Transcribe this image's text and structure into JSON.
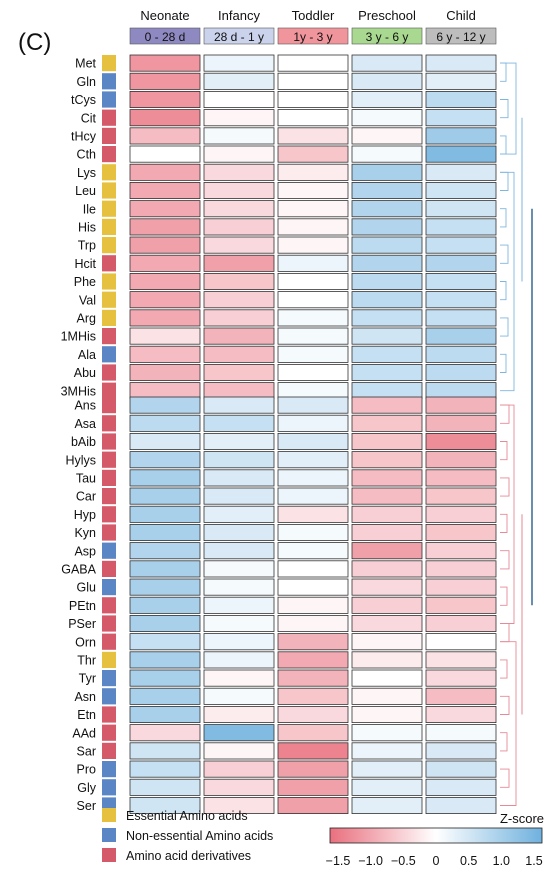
{
  "panel_label": "(C)",
  "colors": {
    "essential": "#e6c13f",
    "nonessential": "#5b86c5",
    "derivative": "#d45a6a",
    "low": "#e9707e",
    "mid": "#ffffff",
    "high": "#6fb1de"
  },
  "chart_data": {
    "type": "heatmap",
    "stage_names": [
      "Neonate",
      "Infancy",
      "Toddler",
      "Preschool",
      "Child"
    ],
    "stage_ranges": [
      "0 - 28 d",
      "28 d - 1 y",
      "1y - 3 y",
      "3 y - 6 y",
      "6 y - 12 y"
    ],
    "stage_colors": [
      "#8e89c1",
      "#cbd3ec",
      "#f0959c",
      "#a9d890",
      "#bdbdbd"
    ],
    "scale": {
      "title": "Z-score",
      "min": -1.5,
      "max": 1.5,
      "tick_labels": [
        "−1.5",
        "−1.0",
        "−0.5",
        "0",
        "0.5",
        "1.0",
        "1.5"
      ]
    },
    "legend": [
      {
        "label": "Essential Amino acids",
        "category": "essential"
      },
      {
        "label": "Non-essential Amino acids",
        "category": "nonessential"
      },
      {
        "label": "Amino acid derivatives",
        "category": "derivative"
      }
    ],
    "rows": [
      {
        "name": "Met",
        "category": "essential",
        "values": [
          -1.1,
          0.2,
          0.0,
          0.4,
          0.4
        ]
      },
      {
        "name": "Gln",
        "category": "nonessential",
        "values": [
          -1.1,
          0.3,
          0.0,
          0.4,
          0.3
        ]
      },
      {
        "name": "tCys",
        "category": "nonessential",
        "values": [
          -1.1,
          0.0,
          0.0,
          0.3,
          0.7
        ]
      },
      {
        "name": "Cit",
        "category": "derivative",
        "values": [
          -1.2,
          -0.1,
          0.0,
          0.1,
          0.6
        ]
      },
      {
        "name": "tHcy",
        "category": "derivative",
        "values": [
          -0.7,
          0.1,
          -0.3,
          -0.1,
          1.0
        ]
      },
      {
        "name": "Cth",
        "category": "derivative",
        "values": [
          0.0,
          -0.1,
          -0.6,
          0.1,
          1.3
        ]
      },
      {
        "name": "Lys",
        "category": "essential",
        "values": [
          -0.9,
          -0.4,
          -0.2,
          0.9,
          0.4
        ]
      },
      {
        "name": "Leu",
        "category": "essential",
        "values": [
          -0.9,
          -0.4,
          -0.1,
          0.8,
          0.5
        ]
      },
      {
        "name": "Ile",
        "category": "essential",
        "values": [
          -0.9,
          -0.4,
          -0.1,
          0.8,
          0.5
        ]
      },
      {
        "name": "His",
        "category": "essential",
        "values": [
          -1.0,
          -0.5,
          -0.1,
          0.8,
          0.6
        ]
      },
      {
        "name": "Trp",
        "category": "essential",
        "values": [
          -1.0,
          -0.4,
          -0.1,
          0.7,
          0.6
        ]
      },
      {
        "name": "Hcit",
        "category": "derivative",
        "values": [
          -0.9,
          -1.0,
          0.2,
          0.8,
          0.8
        ]
      },
      {
        "name": "Phe",
        "category": "essential",
        "values": [
          -0.9,
          -0.6,
          0.0,
          0.7,
          0.6
        ]
      },
      {
        "name": "Val",
        "category": "essential",
        "values": [
          -0.9,
          -0.5,
          0.0,
          0.7,
          0.6
        ]
      },
      {
        "name": "Arg",
        "category": "essential",
        "values": [
          -0.9,
          -0.5,
          0.1,
          0.6,
          0.6
        ]
      },
      {
        "name": "1MHis",
        "category": "derivative",
        "values": [
          -0.3,
          -0.8,
          0.1,
          0.5,
          0.9
        ]
      },
      {
        "name": "Ala",
        "category": "nonessential",
        "values": [
          -0.7,
          -0.7,
          0.1,
          0.6,
          0.7
        ]
      },
      {
        "name": "Abu",
        "category": "derivative",
        "values": [
          -0.8,
          -0.6,
          0.0,
          0.6,
          0.7
        ]
      },
      {
        "name": "3MHis",
        "category": "derivative",
        "values": [
          -0.7,
          -0.7,
          0.1,
          0.6,
          0.7
        ]
      },
      {
        "name": "Ans",
        "category": "derivative",
        "values": [
          0.8,
          0.4,
          0.4,
          -0.7,
          -0.8
        ]
      },
      {
        "name": "Asa",
        "category": "derivative",
        "values": [
          0.7,
          0.6,
          0.2,
          -0.6,
          -0.8
        ]
      },
      {
        "name": "bAib",
        "category": "derivative",
        "values": [
          0.4,
          0.3,
          0.4,
          -0.6,
          -1.2
        ]
      },
      {
        "name": "Hylys",
        "category": "derivative",
        "values": [
          0.8,
          0.5,
          0.3,
          -0.6,
          -0.8
        ]
      },
      {
        "name": "Tau",
        "category": "derivative",
        "values": [
          0.9,
          0.4,
          0.2,
          -0.7,
          -0.7
        ]
      },
      {
        "name": "Car",
        "category": "derivative",
        "values": [
          0.9,
          0.4,
          0.2,
          -0.7,
          -0.6
        ]
      },
      {
        "name": "Hyp",
        "category": "derivative",
        "values": [
          0.9,
          0.3,
          -0.3,
          -0.5,
          -0.5
        ]
      },
      {
        "name": "Kyn",
        "category": "derivative",
        "values": [
          0.9,
          0.4,
          0.1,
          -0.5,
          -0.6
        ]
      },
      {
        "name": "Asp",
        "category": "nonessential",
        "values": [
          0.8,
          0.4,
          0.1,
          -1.0,
          -0.5
        ]
      },
      {
        "name": "GABA",
        "category": "derivative",
        "values": [
          0.9,
          0.1,
          0.0,
          -0.5,
          -0.5
        ]
      },
      {
        "name": "Glu",
        "category": "nonessential",
        "values": [
          0.9,
          0.1,
          0.0,
          -0.4,
          -0.5
        ]
      },
      {
        "name": "PEtn",
        "category": "derivative",
        "values": [
          0.9,
          0.2,
          -0.1,
          -0.5,
          -0.6
        ]
      },
      {
        "name": "PSer",
        "category": "derivative",
        "values": [
          0.9,
          0.1,
          -0.1,
          -0.4,
          -0.5
        ]
      },
      {
        "name": "Orn",
        "category": "derivative",
        "values": [
          0.6,
          0.2,
          -0.8,
          -0.1,
          0.0
        ]
      },
      {
        "name": "Thr",
        "category": "essential",
        "values": [
          0.9,
          0.2,
          -0.9,
          -0.2,
          -0.3
        ]
      },
      {
        "name": "Tyr",
        "category": "nonessential",
        "values": [
          0.9,
          -0.1,
          -0.8,
          0.0,
          -0.4
        ]
      },
      {
        "name": "Asn",
        "category": "nonessential",
        "values": [
          0.9,
          0.1,
          -0.6,
          -0.1,
          -0.7
        ]
      },
      {
        "name": "Etn",
        "category": "derivative",
        "values": [
          0.9,
          -0.2,
          -0.4,
          -0.1,
          -0.4
        ]
      },
      {
        "name": "AAd",
        "category": "derivative",
        "values": [
          -0.4,
          1.3,
          -0.6,
          0.1,
          0.1
        ]
      },
      {
        "name": "Sar",
        "category": "derivative",
        "values": [
          0.5,
          -0.1,
          -1.3,
          0.2,
          0.4
        ]
      },
      {
        "name": "Pro",
        "category": "nonessential",
        "values": [
          0.6,
          -0.5,
          -1.0,
          0.3,
          0.5
        ]
      },
      {
        "name": "Gly",
        "category": "nonessential",
        "values": [
          0.5,
          -0.4,
          -1.0,
          0.3,
          0.4
        ]
      },
      {
        "name": "Ser",
        "category": "nonessential",
        "values": [
          0.5,
          -0.3,
          -1.0,
          0.3,
          0.4
        ]
      }
    ]
  }
}
